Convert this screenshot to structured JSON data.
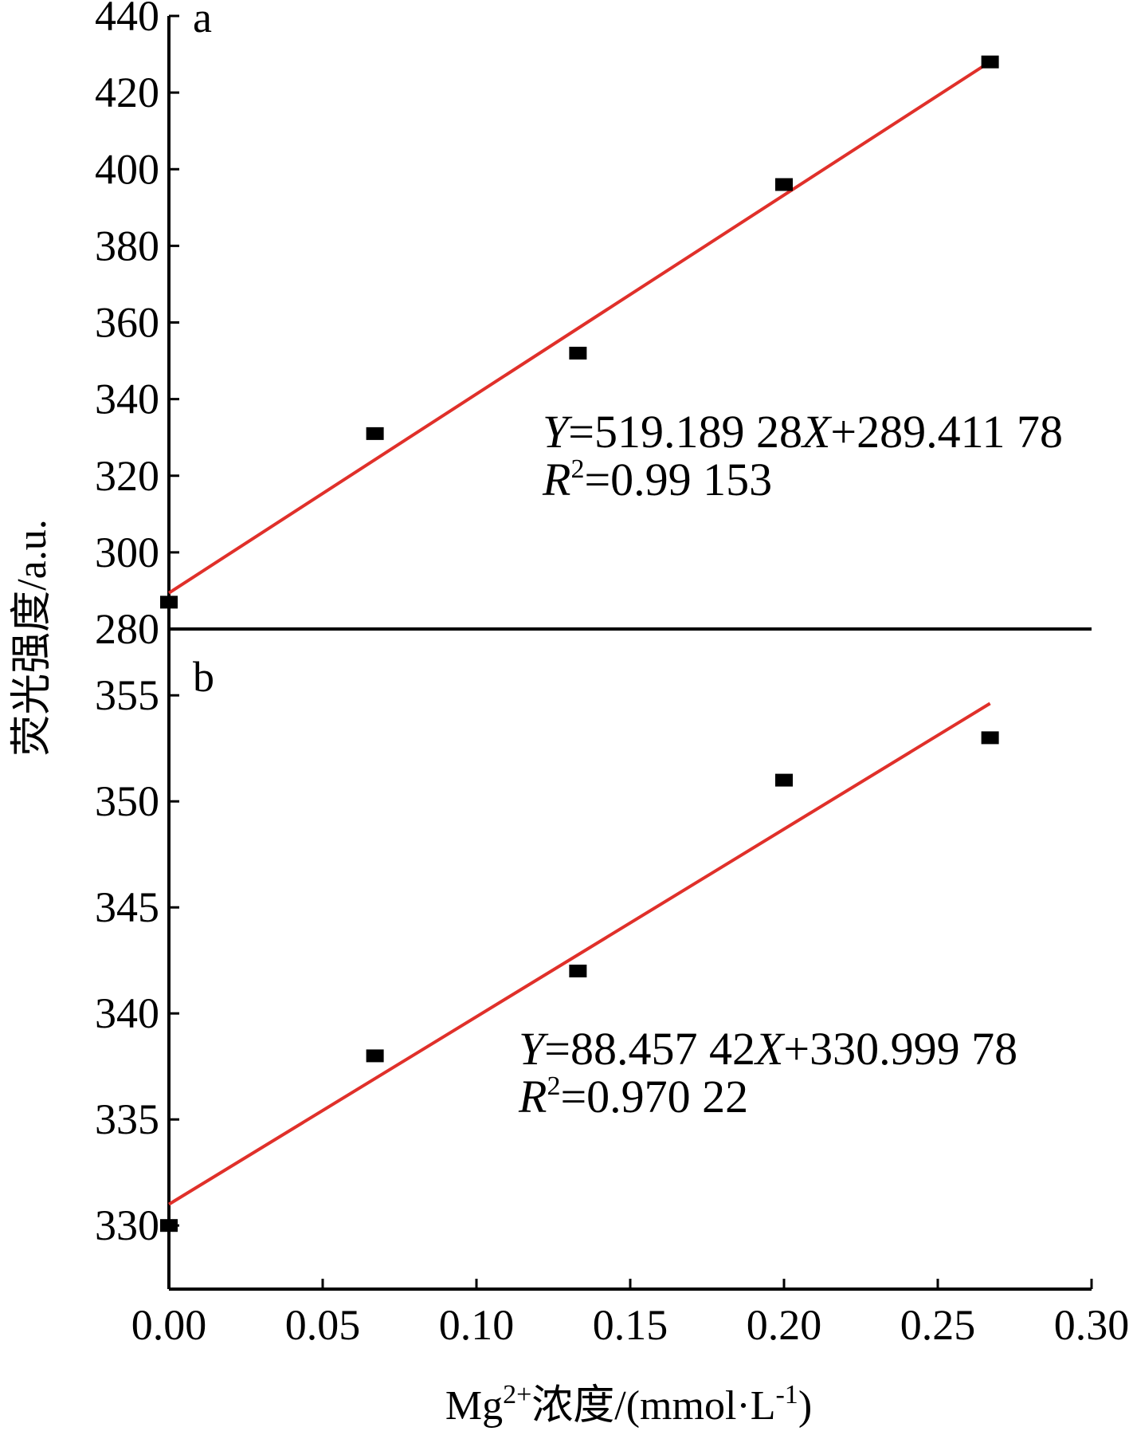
{
  "chart_data": {
    "type": "scatter",
    "ylabel": "荧光强度/a.u.",
    "xlabel": {
      "prefix": "Mg",
      "sup": "2+",
      "main": "浓度/(mmol·L",
      "unit_sup": "-1",
      "suffix": ")"
    },
    "xlim": [
      0.0,
      0.3
    ],
    "xticks": [
      "0.00",
      "0.05",
      "0.10",
      "0.15",
      "0.20",
      "0.25",
      "0.30"
    ],
    "grid": false,
    "panels": [
      {
        "label": "a",
        "ylim": [
          280,
          440
        ],
        "yticks": [
          "280",
          "300",
          "320",
          "340",
          "360",
          "380",
          "400",
          "420",
          "440"
        ],
        "points": [
          {
            "x": 0.0,
            "y": 287
          },
          {
            "x": 0.067,
            "y": 331
          },
          {
            "x": 0.133,
            "y": 352
          },
          {
            "x": 0.2,
            "y": 396
          },
          {
            "x": 0.267,
            "y": 428
          }
        ],
        "fit": {
          "slope": 519.18928,
          "intercept": 289.41178,
          "color": "#e0302a"
        },
        "equation": {
          "y_var": "Y",
          "y_rest": "=519.189 28",
          "x_var": "X",
          "x_rest": "+289.411 78",
          "r_var": "R",
          "r_sup": "2",
          "r_rest": "=0.99 153"
        }
      },
      {
        "label": "b",
        "ylim": [
          327,
          357
        ],
        "yticks": [
          "330",
          "335",
          "340",
          "345",
          "350",
          "355"
        ],
        "points": [
          {
            "x": 0.0,
            "y": 330
          },
          {
            "x": 0.067,
            "y": 338
          },
          {
            "x": 0.133,
            "y": 342
          },
          {
            "x": 0.2,
            "y": 351
          },
          {
            "x": 0.267,
            "y": 353
          }
        ],
        "fit": {
          "slope": 88.45742,
          "intercept": 330.99978,
          "color": "#e0302a"
        },
        "equation": {
          "y_var": "Y",
          "y_rest": "=88.457 42",
          "x_var": "X",
          "x_rest": "+330.999 78",
          "r_var": "R",
          "r_sup": "2",
          "r_rest": "=0.970 22"
        }
      }
    ]
  }
}
